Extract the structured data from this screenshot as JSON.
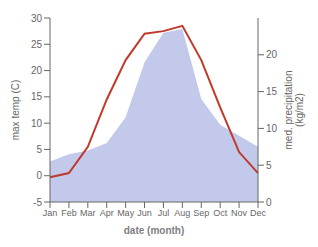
{
  "chart_data": {
    "type": "line",
    "xlabel": "date (month)",
    "ylabel": "max temp (C)",
    "y2label": "med. precipitation\n(kg/m2)",
    "categories": [
      "Jan",
      "Feb",
      "Mar",
      "Apr",
      "May",
      "Jun",
      "Jul",
      "Aug",
      "Sep",
      "Oct",
      "Nov",
      "Dec"
    ],
    "series": [
      {
        "type": "area",
        "axis": "y2",
        "color": "#b8bfe8",
        "values": [
          5.5,
          6.5,
          7.0,
          8.0,
          11.5,
          19.0,
          23.0,
          23.5,
          14.0,
          10.5,
          9.0,
          7.5
        ]
      },
      {
        "type": "line",
        "color": "#c0392b",
        "values": [
          -0.3,
          0.5,
          5.5,
          14.5,
          22.0,
          27.0,
          27.5,
          28.5,
          22.0,
          13.0,
          4.5,
          0.5
        ]
      }
    ],
    "ylim": [
      -5,
      30
    ],
    "yticks": [
      -5,
      0,
      5,
      10,
      15,
      20,
      25,
      30
    ],
    "y2lim": [
      0,
      25
    ],
    "y2ticks": [
      0,
      5,
      10,
      15,
      20
    ],
    "grid": false
  }
}
